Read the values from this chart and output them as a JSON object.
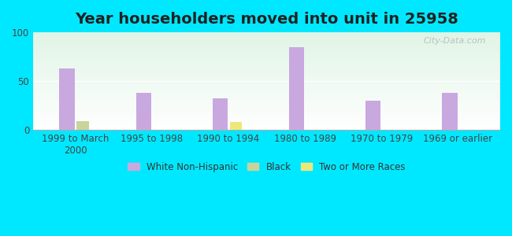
{
  "title": "Year householders moved into unit in 25958",
  "categories": [
    "1999 to March\n2000",
    "1995 to 1998",
    "1990 to 1994",
    "1980 to 1989",
    "1970 to 1979",
    "1969 or earlier"
  ],
  "white_non_hispanic": [
    63,
    38,
    32,
    85,
    30,
    38
  ],
  "black": [
    9,
    0,
    0,
    0,
    0,
    0
  ],
  "two_or_more": [
    0,
    0,
    8,
    0,
    0,
    0
  ],
  "bar_width": 0.18,
  "ylim": [
    0,
    100
  ],
  "yticks": [
    0,
    50,
    100
  ],
  "white_color": "#c9a8e0",
  "black_color": "#c8d49a",
  "two_color": "#ede87c",
  "bg_outer": "#00e8ff",
  "watermark": "City-Data.com",
  "legend_labels": [
    "White Non-Hispanic",
    "Black",
    "Two or More Races"
  ],
  "title_fontsize": 14,
  "axis_label_fontsize": 8.5
}
